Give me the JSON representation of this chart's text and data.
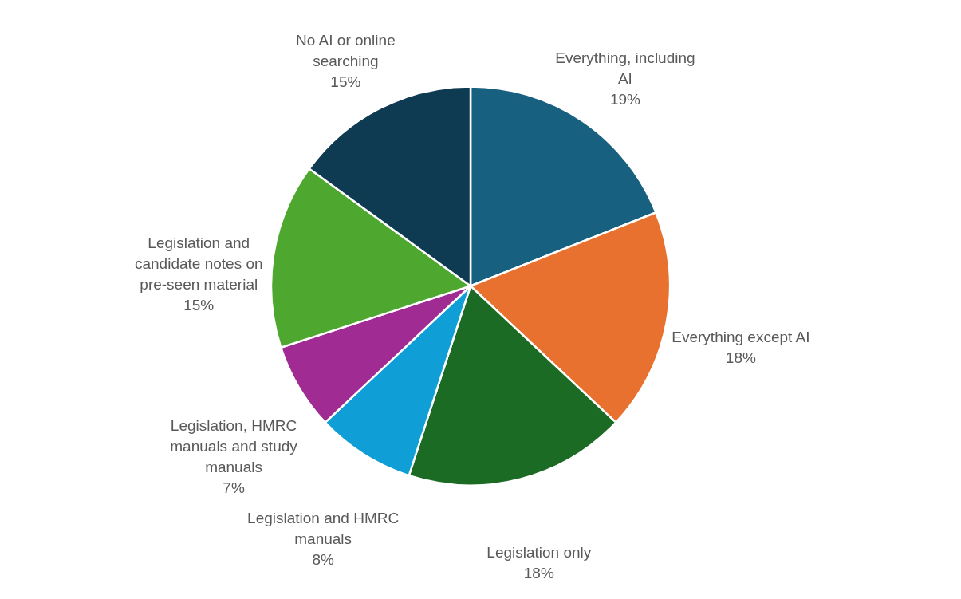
{
  "chart_data": {
    "type": "pie",
    "categories": [
      "Everything, including AI",
      "Everything except AI",
      "Legislation only",
      "Legislation and HMRC manuals",
      "Legislation, HMRC manuals and study manuals",
      "Legislation and candidate notes on pre-seen material",
      "No AI or online searching"
    ],
    "values": [
      19,
      18,
      18,
      8,
      7,
      15,
      15
    ],
    "value_labels": [
      "19%",
      "18%",
      "18%",
      "8%",
      "7%",
      "15%",
      "15%"
    ],
    "colors": [
      "#17607f",
      "#e8712f",
      "#1b6b24",
      "#0f9ed5",
      "#a02b93",
      "#4ea72e",
      "#0e3a52"
    ],
    "legend": false
  }
}
